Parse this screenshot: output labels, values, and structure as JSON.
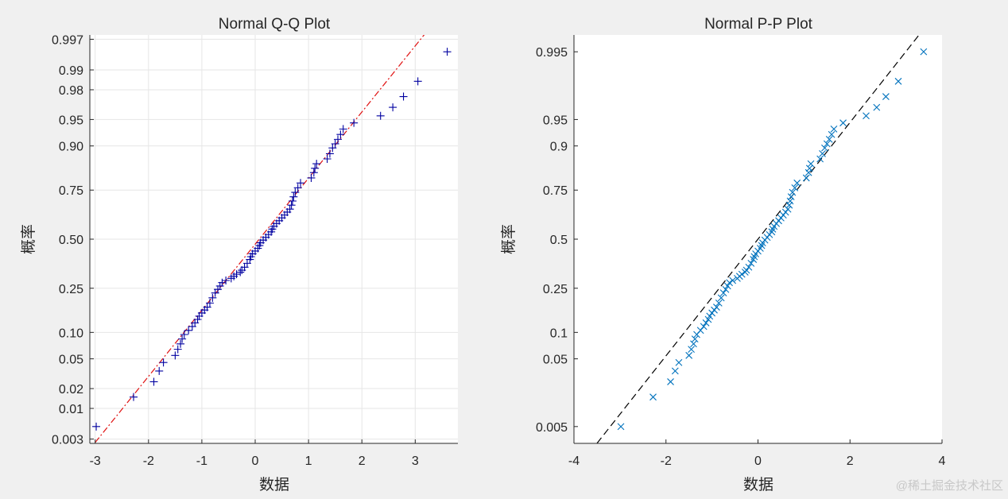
{
  "chart_data": [
    {
      "type": "scatter",
      "title": "Normal Q-Q Plot",
      "xlabel": "数据",
      "ylabel": "概率",
      "xlim": [
        -3.1,
        3.8
      ],
      "ylim": [
        0.0025,
        0.9975
      ],
      "y_scale": "normal-probability",
      "grid": true,
      "xticks": [
        -3,
        -2,
        -1,
        0,
        1,
        2,
        3
      ],
      "xtick_labels": [
        "-3",
        "-2",
        "-1",
        "0",
        "1",
        "2",
        "3"
      ],
      "yticks": [
        0.003,
        0.01,
        0.02,
        0.05,
        0.1,
        0.25,
        0.5,
        0.75,
        0.9,
        0.95,
        0.98,
        0.99,
        0.997
      ],
      "ytick_labels": [
        "0.003",
        "0.01",
        "0.02",
        "0.05",
        "0.10",
        "0.25",
        "0.50",
        "0.75",
        "0.90",
        "0.95",
        "0.98",
        "0.99",
        "0.997"
      ],
      "marker": "+",
      "marker_color": "#0000a0",
      "reference_line": {
        "style": "dash-dot",
        "color": "#e01010",
        "points": [
          [
            -3,
            0.0026
          ],
          [
            3.3,
            0.9983
          ]
        ]
      },
      "x": [
        -2.98,
        -2.28,
        -1.9,
        -1.8,
        -1.72,
        -1.5,
        -1.45,
        -1.4,
        -1.37,
        -1.33,
        -1.25,
        -1.18,
        -1.13,
        -1.08,
        -1.05,
        -1.0,
        -0.95,
        -0.9,
        -0.85,
        -0.8,
        -0.75,
        -0.7,
        -0.66,
        -0.62,
        -0.55,
        -0.45,
        -0.4,
        -0.35,
        -0.28,
        -0.25,
        -0.2,
        -0.15,
        -0.1,
        -0.08,
        -0.05,
        0.0,
        0.05,
        0.08,
        0.1,
        0.15,
        0.2,
        0.25,
        0.3,
        0.32,
        0.35,
        0.4,
        0.45,
        0.5,
        0.55,
        0.6,
        0.65,
        0.68,
        0.7,
        0.72,
        0.75,
        0.8,
        0.85,
        1.05,
        1.1,
        1.12,
        1.15,
        1.35,
        1.4,
        1.45,
        1.5,
        1.55,
        1.6,
        1.65,
        1.85,
        2.35,
        2.58,
        2.78,
        3.05,
        3.6
      ],
      "y": [
        0.005,
        0.015,
        0.025,
        0.035,
        0.045,
        0.055,
        0.065,
        0.075,
        0.085,
        0.095,
        0.105,
        0.115,
        0.125,
        0.135,
        0.145,
        0.155,
        0.165,
        0.175,
        0.19,
        0.21,
        0.23,
        0.245,
        0.26,
        0.275,
        0.285,
        0.295,
        0.305,
        0.315,
        0.325,
        0.335,
        0.35,
        0.37,
        0.39,
        0.405,
        0.42,
        0.435,
        0.45,
        0.465,
        0.48,
        0.495,
        0.51,
        0.525,
        0.54,
        0.555,
        0.57,
        0.585,
        0.6,
        0.615,
        0.63,
        0.645,
        0.66,
        0.68,
        0.7,
        0.72,
        0.74,
        0.76,
        0.78,
        0.8,
        0.82,
        0.835,
        0.85,
        0.865,
        0.88,
        0.895,
        0.905,
        0.915,
        0.925,
        0.935,
        0.945,
        0.955,
        0.965,
        0.975,
        0.985,
        0.995
      ]
    },
    {
      "type": "scatter",
      "title": "Normal P-P Plot",
      "xlabel": "数据",
      "ylabel": "概率",
      "xlim": [
        -4,
        4
      ],
      "ylim": [
        0.0025,
        0.9975
      ],
      "y_scale": "normal-probability",
      "grid": false,
      "xticks": [
        -4,
        -2,
        0,
        2,
        4
      ],
      "xtick_labels": [
        "-4",
        "-2",
        "0",
        "2",
        "4"
      ],
      "yticks": [
        0.005,
        0.05,
        0.1,
        0.25,
        0.5,
        0.75,
        0.9,
        0.95,
        0.995
      ],
      "ytick_labels": [
        "0.005",
        "0.05",
        "0.1",
        "0.25",
        "0.5",
        "0.75",
        "0.9",
        "0.95",
        "0.995"
      ],
      "marker": "x",
      "marker_color": "#0072bd",
      "reference_line": {
        "style": "dashed",
        "color": "#000000",
        "points": [
          [
            -3.5,
            0.0025
          ],
          [
            3.5,
            0.9975
          ]
        ]
      },
      "x": [
        -2.98,
        -2.28,
        -1.9,
        -1.8,
        -1.72,
        -1.5,
        -1.45,
        -1.4,
        -1.37,
        -1.33,
        -1.25,
        -1.18,
        -1.13,
        -1.08,
        -1.05,
        -1.0,
        -0.95,
        -0.9,
        -0.85,
        -0.8,
        -0.75,
        -0.7,
        -0.66,
        -0.62,
        -0.55,
        -0.45,
        -0.4,
        -0.35,
        -0.28,
        -0.25,
        -0.2,
        -0.15,
        -0.1,
        -0.08,
        -0.05,
        0.0,
        0.05,
        0.08,
        0.1,
        0.15,
        0.2,
        0.25,
        0.3,
        0.32,
        0.35,
        0.4,
        0.45,
        0.5,
        0.55,
        0.6,
        0.65,
        0.68,
        0.7,
        0.72,
        0.75,
        0.8,
        0.85,
        1.05,
        1.1,
        1.12,
        1.15,
        1.35,
        1.4,
        1.45,
        1.5,
        1.55,
        1.6,
        1.65,
        1.85,
        2.35,
        2.58,
        2.78,
        3.05,
        3.6
      ],
      "y": [
        0.005,
        0.015,
        0.025,
        0.035,
        0.045,
        0.055,
        0.065,
        0.075,
        0.085,
        0.095,
        0.105,
        0.115,
        0.125,
        0.135,
        0.145,
        0.155,
        0.165,
        0.175,
        0.19,
        0.21,
        0.23,
        0.245,
        0.26,
        0.275,
        0.285,
        0.295,
        0.305,
        0.315,
        0.325,
        0.335,
        0.35,
        0.37,
        0.39,
        0.405,
        0.42,
        0.435,
        0.45,
        0.465,
        0.48,
        0.495,
        0.51,
        0.525,
        0.54,
        0.555,
        0.57,
        0.585,
        0.6,
        0.615,
        0.63,
        0.645,
        0.66,
        0.68,
        0.7,
        0.72,
        0.74,
        0.76,
        0.78,
        0.8,
        0.82,
        0.835,
        0.85,
        0.865,
        0.88,
        0.895,
        0.905,
        0.915,
        0.925,
        0.935,
        0.945,
        0.955,
        0.965,
        0.975,
        0.985,
        0.995
      ]
    }
  ],
  "watermark": "@稀土掘金技术社区"
}
